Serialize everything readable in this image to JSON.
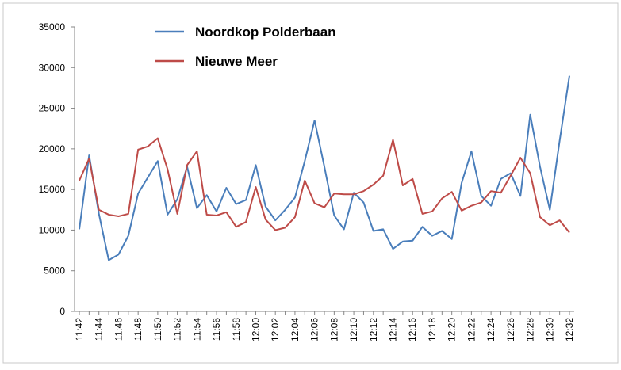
{
  "chart_data": {
    "type": "line",
    "categories": [
      "11:42",
      null,
      "11:44",
      null,
      "11:46",
      null,
      "11:48",
      null,
      "11:50",
      null,
      "11:52",
      null,
      "11:54",
      null,
      "11:56",
      null,
      "11:58",
      null,
      "12:00",
      null,
      "12:02",
      null,
      "12:04",
      null,
      "12:06",
      null,
      "12:08",
      null,
      "12:10",
      null,
      "12:12",
      null,
      "12:14",
      null,
      "12:16",
      null,
      "12:18",
      null,
      "12:20",
      null,
      "12:22",
      null,
      "12:24",
      null,
      "12:26",
      null,
      "12:28",
      null,
      "12:30",
      null,
      "12:32"
    ],
    "series": [
      {
        "name": "Noordkop Polderbaan",
        "color": "#4a7ebb",
        "values": [
          10100,
          19200,
          12000,
          6300,
          7000,
          9300,
          14500,
          16500,
          18500,
          11900,
          13800,
          17800,
          12700,
          14300,
          12300,
          15200,
          13200,
          13700,
          18000,
          12900,
          11200,
          12500,
          14000,
          18500,
          23500,
          17800,
          11800,
          10100,
          14600,
          13400,
          9900,
          10100,
          7700,
          8600,
          8700,
          10400,
          9300,
          9900,
          8900,
          15800,
          19700,
          14200,
          13000,
          16300,
          17000,
          14200,
          24200,
          17800,
          12500,
          21000,
          29000
        ]
      },
      {
        "name": "Nieuwe Meer",
        "color": "#be4b48",
        "values": [
          16100,
          18800,
          12500,
          11900,
          11700,
          12000,
          19900,
          20300,
          21300,
          17500,
          12000,
          18000,
          19700,
          11900,
          11800,
          12200,
          10400,
          11000,
          15300,
          11300,
          10000,
          10300,
          11600,
          16100,
          13300,
          12800,
          14500,
          14400,
          14400,
          14800,
          15600,
          16700,
          21100,
          15500,
          16300,
          12000,
          12300,
          13900,
          14700,
          12400,
          13000,
          13400,
          14800,
          14600,
          16700,
          18900,
          17000,
          11600,
          10600,
          11200,
          9700
        ]
      }
    ],
    "ylim": [
      0,
      35000
    ],
    "yticks": [
      0,
      5000,
      10000,
      15000,
      20000,
      25000,
      30000,
      35000
    ],
    "grid": false,
    "legend": "top"
  }
}
